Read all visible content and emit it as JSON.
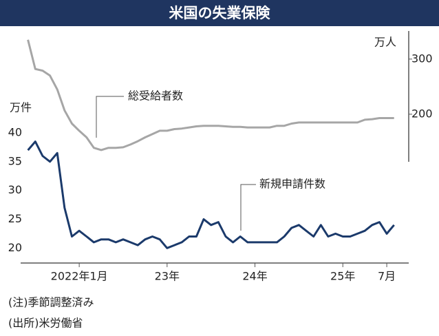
{
  "chart_data": {
    "type": "line",
    "title": "米国の失業保険",
    "y_unit": "万件",
    "y2_unit": "万人",
    "x": [
      "2021-06",
      "2021-07",
      "2021-08",
      "2021-09",
      "2021-10",
      "2021-11",
      "2021-12",
      "2022-01",
      "2022-02",
      "2022-03",
      "2022-04",
      "2022-05",
      "2022-06",
      "2022-07",
      "2022-08",
      "2022-09",
      "2022-10",
      "2022-11",
      "2022-12",
      "2023-01",
      "2023-02",
      "2023-03",
      "2023-04",
      "2023-05",
      "2023-06",
      "2023-07",
      "2023-08",
      "2023-09",
      "2023-10",
      "2023-11",
      "2023-12",
      "2024-01",
      "2024-02",
      "2024-03",
      "2024-04",
      "2024-05",
      "2024-06",
      "2024-07",
      "2024-08",
      "2024-09",
      "2024-10",
      "2024-11",
      "2024-12",
      "2025-01",
      "2025-02",
      "2025-03",
      "2025-04",
      "2025-05",
      "2025-06",
      "2025-07",
      "2025-08"
    ],
    "series": [
      {
        "name": "新規申請件数",
        "color": "#1b3a6b",
        "axis": "y",
        "values": [
          37,
          38.5,
          36,
          35,
          36.5,
          27,
          22,
          23,
          22,
          21,
          21.5,
          21.5,
          21,
          21.5,
          21,
          20.5,
          21.5,
          22,
          21.5,
          20,
          20.5,
          21,
          22,
          22,
          25,
          24,
          24.5,
          22,
          21,
          22,
          21,
          21,
          21,
          21,
          21,
          22,
          23.5,
          24,
          23,
          22,
          24,
          22,
          22.5,
          22,
          22,
          22.5,
          23,
          24,
          24.5,
          22.5,
          24
        ]
      },
      {
        "name": "総受給者数",
        "color": "#a6a6a6",
        "axis": "y2",
        "values": [
          335,
          282,
          279,
          270,
          245,
          207,
          183,
          170,
          158,
          139,
          135,
          139,
          139,
          140,
          145,
          151,
          158,
          164,
          170,
          170,
          173,
          174,
          176,
          178,
          179,
          179,
          179,
          178,
          177,
          177,
          176,
          176,
          176,
          176,
          179,
          179,
          183,
          185,
          185,
          185,
          185,
          185,
          185,
          185,
          185,
          185,
          190,
          191,
          193,
          193,
          193
        ]
      }
    ],
    "xlim": [
      "2021-05",
      "2025-10"
    ],
    "xticks": [
      {
        "value": "2022-01",
        "label": "2022年1月"
      },
      {
        "value": "2023-01",
        "label": "23年"
      },
      {
        "value": "2024-01",
        "label": "24年"
      },
      {
        "value": "2025-01",
        "label": "25年"
      },
      {
        "value": "2025-07",
        "label": "7月"
      }
    ],
    "ylim": [
      17.4,
      57.7
    ],
    "yticks": [
      20,
      25,
      30,
      35,
      40
    ],
    "y2lim": [
      -70,
      351
    ],
    "y2ticks": [
      200,
      300
    ],
    "notes": [
      "(注)季節調整済み",
      "(出所)米労働省"
    ]
  }
}
